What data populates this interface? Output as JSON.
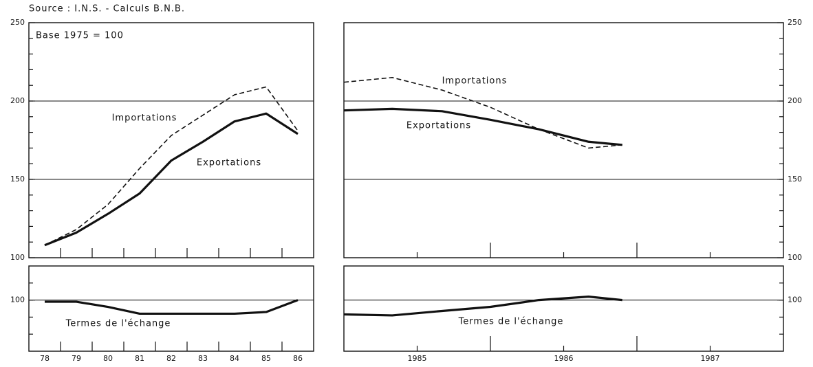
{
  "source": "Source : I.N.S. - Calculs B.N.B.",
  "chart_data": [
    {
      "type": "line",
      "note": "Base 1975 = 100",
      "categories": [
        "78",
        "79",
        "80",
        "81",
        "82",
        "83",
        "84",
        "85",
        "86"
      ],
      "ylim": [
        100,
        250
      ],
      "yticks": [
        100,
        150,
        200,
        250
      ],
      "grid": true,
      "series": [
        {
          "name": "Importations",
          "color": "#111111",
          "style": "dashed",
          "values": [
            108,
            118,
            134,
            157,
            178,
            191,
            204,
            209,
            181
          ]
        },
        {
          "name": "Exportations",
          "color": "#111111",
          "style": "solid",
          "values": [
            108,
            116,
            128,
            141,
            162,
            174,
            187,
            192,
            179
          ]
        }
      ],
      "terms": {
        "name": "Termes de l'échange",
        "color": "#111111",
        "ylim": [
          70,
          120
        ],
        "yticks": [
          100
        ],
        "values": [
          99,
          99,
          96,
          92,
          92,
          92,
          92,
          93,
          100
        ]
      }
    },
    {
      "type": "line",
      "x": [
        1985.0,
        1985.33,
        1985.67,
        1986.0,
        1986.33,
        1986.67,
        1986.9
      ],
      "xlim": [
        1985,
        1988
      ],
      "xticks": [
        {
          "value": 1985.5,
          "label": "1985"
        },
        {
          "value": 1986.5,
          "label": "1986"
        },
        {
          "value": 1987.5,
          "label": "1987"
        }
      ],
      "ylim": [
        100,
        250
      ],
      "yticks": [
        100,
        150,
        200,
        250
      ],
      "grid": true,
      "series": [
        {
          "name": "Importations",
          "color": "#111111",
          "style": "dashed",
          "values": [
            212,
            215,
            207,
            196,
            182,
            170,
            172
          ]
        },
        {
          "name": "Exportations",
          "color": "#111111",
          "style": "solid",
          "values": [
            194,
            195,
            193.5,
            188,
            182,
            174,
            172
          ]
        }
      ],
      "terms": {
        "name": "Termes de l'échange",
        "color": "#111111",
        "ylim": [
          70,
          120
        ],
        "yticks": [
          100
        ],
        "values": [
          91.6,
          91,
          93.6,
          96,
          100,
          102,
          100
        ]
      }
    }
  ]
}
